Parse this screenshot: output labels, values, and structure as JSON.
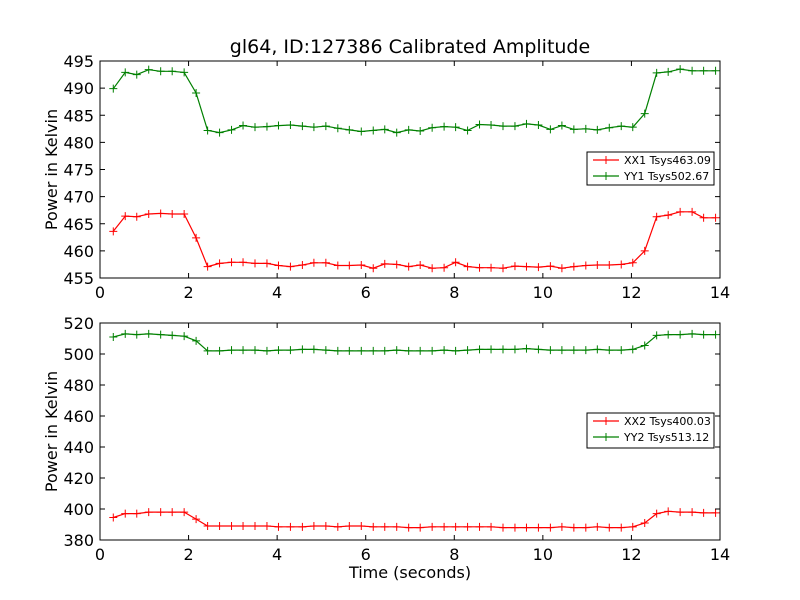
{
  "figure": {
    "title": "gl64, ID:127386 Calibrated Amplitude"
  },
  "chart_data": [
    {
      "type": "line",
      "title": "gl64, ID:127386 Calibrated Amplitude",
      "xlabel": "",
      "ylabel": "Power in Kelvin",
      "xlim": [
        0,
        14
      ],
      "ylim": [
        455,
        495
      ],
      "xticks": [
        0,
        2,
        4,
        6,
        8,
        10,
        12,
        14
      ],
      "yticks": [
        455,
        460,
        465,
        470,
        475,
        480,
        485,
        490,
        495
      ],
      "grid": false,
      "legend_position": "center-right",
      "x": [
        0.3,
        0.57,
        0.83,
        1.1,
        1.37,
        1.63,
        1.9,
        2.17,
        2.43,
        2.7,
        2.97,
        3.23,
        3.5,
        3.77,
        4.03,
        4.3,
        4.57,
        4.83,
        5.1,
        5.37,
        5.63,
        5.9,
        6.17,
        6.43,
        6.7,
        6.97,
        7.23,
        7.5,
        7.77,
        8.03,
        8.3,
        8.57,
        8.83,
        9.1,
        9.37,
        9.63,
        9.9,
        10.17,
        10.43,
        10.7,
        10.97,
        11.23,
        11.5,
        11.77,
        12.03,
        12.3,
        12.57,
        12.83,
        13.1,
        13.37,
        13.63,
        13.9
      ],
      "series": [
        {
          "name": "XX1 Tsys463.09",
          "color": "#ff0000",
          "values": [
            463.6,
            466.4,
            466.3,
            466.8,
            466.9,
            466.8,
            466.8,
            462.4,
            457.1,
            457.7,
            457.9,
            457.9,
            457.7,
            457.7,
            457.3,
            457.1,
            457.4,
            457.8,
            457.8,
            457.3,
            457.3,
            457.4,
            456.8,
            457.6,
            457.5,
            457.1,
            457.4,
            456.8,
            456.9,
            457.9,
            457.1,
            456.9,
            456.9,
            456.8,
            457.2,
            457.1,
            457.0,
            457.2,
            456.8,
            457.1,
            457.3,
            457.4,
            457.4,
            457.5,
            457.8,
            460.0,
            466.3,
            466.6,
            467.2,
            467.2,
            466.1,
            466.1
          ]
        },
        {
          "name": "YY1 Tsys502.67",
          "color": "#008000",
          "values": [
            489.9,
            492.9,
            492.5,
            493.4,
            493.1,
            493.1,
            492.9,
            489.1,
            482.2,
            481.8,
            482.3,
            483.1,
            482.8,
            482.9,
            483.1,
            483.2,
            483.0,
            482.8,
            483.0,
            482.6,
            482.3,
            482.0,
            482.2,
            482.4,
            481.8,
            482.3,
            482.1,
            482.7,
            482.9,
            482.8,
            482.2,
            483.3,
            483.2,
            483.0,
            483.0,
            483.4,
            483.2,
            482.4,
            483.1,
            482.4,
            482.5,
            482.3,
            482.7,
            483.0,
            482.8,
            485.3,
            492.8,
            493.0,
            493.5,
            493.2,
            493.2,
            493.2
          ]
        }
      ]
    },
    {
      "type": "line",
      "title": "",
      "xlabel": "Time (seconds)",
      "ylabel": "Power in Kelvin",
      "xlim": [
        0,
        14
      ],
      "ylim": [
        380,
        520
      ],
      "xticks": [
        0,
        2,
        4,
        6,
        8,
        10,
        12,
        14
      ],
      "yticks": [
        380,
        400,
        420,
        440,
        460,
        480,
        500,
        520
      ],
      "grid": false,
      "legend_position": "center-right",
      "x": [
        0.3,
        0.57,
        0.83,
        1.1,
        1.37,
        1.63,
        1.9,
        2.17,
        2.43,
        2.7,
        2.97,
        3.23,
        3.5,
        3.77,
        4.03,
        4.3,
        4.57,
        4.83,
        5.1,
        5.37,
        5.63,
        5.9,
        6.17,
        6.43,
        6.7,
        6.97,
        7.23,
        7.5,
        7.77,
        8.03,
        8.3,
        8.57,
        8.83,
        9.1,
        9.37,
        9.63,
        9.9,
        10.17,
        10.43,
        10.7,
        10.97,
        11.23,
        11.5,
        11.77,
        12.03,
        12.3,
        12.57,
        12.83,
        13.1,
        13.37,
        13.63,
        13.9
      ],
      "series": [
        {
          "name": "XX2 Tsys400.03",
          "color": "#ff0000",
          "values": [
            394.5,
            397.0,
            397.0,
            398.0,
            398.0,
            398.0,
            398.0,
            393.5,
            389.0,
            389.0,
            389.0,
            389.0,
            389.0,
            389.0,
            388.5,
            388.5,
            388.5,
            389.0,
            389.0,
            388.5,
            389.0,
            389.0,
            388.5,
            388.5,
            388.5,
            388.0,
            388.0,
            388.5,
            388.5,
            388.5,
            388.5,
            388.5,
            388.5,
            388.0,
            388.0,
            388.0,
            388.0,
            388.0,
            388.5,
            388.0,
            388.0,
            388.5,
            388.0,
            388.0,
            388.5,
            391.0,
            397.0,
            398.5,
            398.0,
            398.0,
            397.5,
            397.5
          ]
        },
        {
          "name": "YY2 Tsys513.12",
          "color": "#008000",
          "values": [
            511.0,
            513.0,
            512.5,
            513.0,
            512.5,
            512.0,
            511.5,
            508.5,
            502.0,
            502.0,
            502.5,
            502.5,
            502.5,
            502.0,
            502.5,
            502.5,
            503.0,
            503.0,
            502.5,
            502.0,
            502.0,
            502.0,
            502.0,
            502.0,
            502.5,
            502.0,
            502.0,
            502.0,
            502.5,
            502.0,
            502.5,
            503.0,
            503.0,
            503.0,
            503.0,
            503.5,
            503.0,
            502.5,
            502.5,
            502.5,
            502.5,
            503.0,
            502.5,
            502.5,
            503.0,
            505.5,
            512.0,
            512.5,
            512.5,
            513.0,
            512.5,
            512.5
          ]
        }
      ]
    }
  ]
}
